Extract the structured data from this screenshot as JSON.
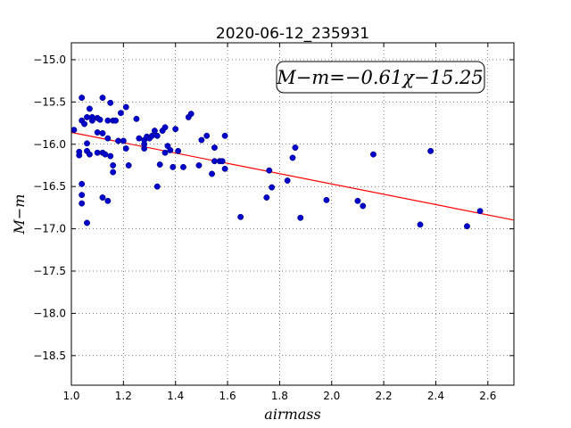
{
  "chart_data": {
    "type": "scatter",
    "title": "2020-06-12_235931",
    "xlabel": "airmass",
    "ylabel": "M−m",
    "xlim": [
      1.0,
      2.7
    ],
    "ylim": [
      -18.85,
      -14.8
    ],
    "x_ticks": [
      1.0,
      1.2,
      1.4,
      1.6,
      1.8,
      2.0,
      2.2,
      2.4,
      2.6
    ],
    "x_tick_labels": [
      "1.0",
      "1.2",
      "1.4",
      "1.6",
      "1.8",
      "2.0",
      "2.2",
      "2.4",
      "2.6"
    ],
    "y_ticks": [
      -15.0,
      -15.5,
      -16.0,
      -16.5,
      -17.0,
      -17.5,
      -18.0,
      -18.5
    ],
    "y_tick_labels": [
      "−15.0",
      "−15.5",
      "−16.0",
      "−16.5",
      "−17.0",
      "−17.5",
      "−18.0",
      "−18.5"
    ],
    "grid": true,
    "annotation": "M−m=−0.61χ−15.25",
    "fit_line": {
      "slope": -0.61,
      "intercept": -15.25,
      "x_range": [
        1.0,
        2.7
      ],
      "color": "#ff0000"
    },
    "point_color": "#0000cc",
    "points": [
      [
        1.01,
        -15.83
      ],
      [
        1.03,
        -16.13
      ],
      [
        1.03,
        -16.09
      ],
      [
        1.04,
        -15.45
      ],
      [
        1.04,
        -15.72
      ],
      [
        1.04,
        -16.47
      ],
      [
        1.04,
        -16.6
      ],
      [
        1.04,
        -16.7
      ],
      [
        1.05,
        -15.76
      ],
      [
        1.06,
        -16.93
      ],
      [
        1.06,
        -16.08
      ],
      [
        1.06,
        -15.99
      ],
      [
        1.06,
        -15.68
      ],
      [
        1.07,
        -16.12
      ],
      [
        1.07,
        -15.58
      ],
      [
        1.08,
        -15.72
      ],
      [
        1.08,
        -15.68
      ],
      [
        1.1,
        -15.86
      ],
      [
        1.1,
        -15.69
      ],
      [
        1.1,
        -16.1
      ],
      [
        1.11,
        -15.71
      ],
      [
        1.12,
        -15.45
      ],
      [
        1.12,
        -15.87
      ],
      [
        1.12,
        -16.1
      ],
      [
        1.12,
        -16.63
      ],
      [
        1.13,
        -16.12
      ],
      [
        1.14,
        -16.67
      ],
      [
        1.14,
        -15.93
      ],
      [
        1.14,
        -15.72
      ],
      [
        1.15,
        -15.51
      ],
      [
        1.15,
        -16.14
      ],
      [
        1.16,
        -16.25
      ],
      [
        1.16,
        -16.33
      ],
      [
        1.16,
        -15.72
      ],
      [
        1.17,
        -15.72
      ],
      [
        1.18,
        -15.96
      ],
      [
        1.19,
        -15.63
      ],
      [
        1.2,
        -15.96
      ],
      [
        1.21,
        -15.56
      ],
      [
        1.21,
        -16.05
      ],
      [
        1.22,
        -16.25
      ],
      [
        1.25,
        -15.7
      ],
      [
        1.26,
        -15.93
      ],
      [
        1.28,
        -16.05
      ],
      [
        1.28,
        -16.0
      ],
      [
        1.28,
        -15.95
      ],
      [
        1.29,
        -15.91
      ],
      [
        1.3,
        -15.93
      ],
      [
        1.31,
        -15.9
      ],
      [
        1.32,
        -15.84
      ],
      [
        1.33,
        -15.9
      ],
      [
        1.33,
        -16.5
      ],
      [
        1.34,
        -16.24
      ],
      [
        1.35,
        -15.84
      ],
      [
        1.36,
        -15.8
      ],
      [
        1.36,
        -16.1
      ],
      [
        1.37,
        -16.02
      ],
      [
        1.38,
        -16.07
      ],
      [
        1.39,
        -16.27
      ],
      [
        1.4,
        -15.82
      ],
      [
        1.41,
        -16.08
      ],
      [
        1.43,
        -16.27
      ],
      [
        1.45,
        -15.68
      ],
      [
        1.46,
        -15.64
      ],
      [
        1.49,
        -16.25
      ],
      [
        1.5,
        -15.95
      ],
      [
        1.52,
        -15.9
      ],
      [
        1.54,
        -16.35
      ],
      [
        1.55,
        -16.04
      ],
      [
        1.55,
        -16.2
      ],
      [
        1.57,
        -16.2
      ],
      [
        1.58,
        -16.2
      ],
      [
        1.59,
        -16.29
      ],
      [
        1.59,
        -15.9
      ],
      [
        1.65,
        -16.86
      ],
      [
        1.75,
        -16.63
      ],
      [
        1.76,
        -16.31
      ],
      [
        1.77,
        -16.51
      ],
      [
        1.83,
        -16.43
      ],
      [
        1.85,
        -16.16
      ],
      [
        1.86,
        -16.04
      ],
      [
        1.88,
        -16.87
      ],
      [
        1.98,
        -16.66
      ],
      [
        2.1,
        -16.67
      ],
      [
        2.12,
        -16.73
      ],
      [
        2.16,
        -16.12
      ],
      [
        2.34,
        -16.95
      ],
      [
        2.38,
        -16.08
      ],
      [
        2.52,
        -16.97
      ],
      [
        2.57,
        -16.79
      ]
    ]
  }
}
